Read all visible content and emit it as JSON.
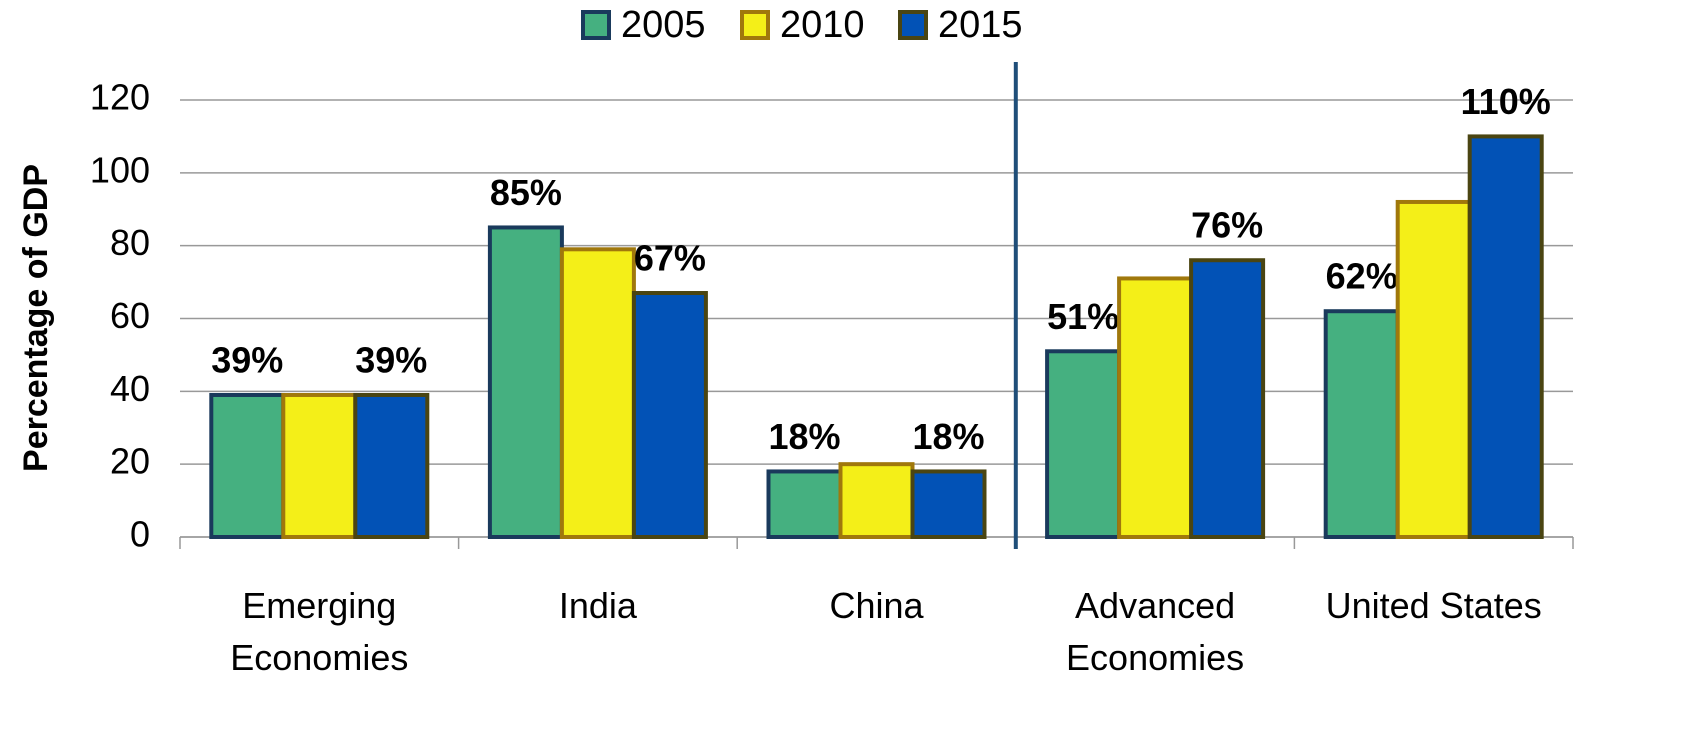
{
  "chart_data": {
    "type": "bar",
    "y_label": "Percentage of GDP",
    "categories": [
      "Emerging\nEconomies",
      "India",
      "China",
      "Advanced\nEconomies",
      "United States"
    ],
    "series": [
      {
        "name": "2005",
        "color": "#45b080",
        "edge": "#1a3a5c",
        "values": [
          39,
          85,
          18,
          51,
          62
        ],
        "value_labels": [
          "39%",
          "85%",
          "18%",
          "51%",
          "62%"
        ]
      },
      {
        "name": "2010",
        "color": "#f4ef18",
        "edge": "#a0780c",
        "values": [
          39,
          79,
          20,
          71,
          92
        ]
      },
      {
        "name": "2015",
        "color": "#0252b6",
        "edge": "#4a4512",
        "values": [
          39,
          67,
          18,
          76,
          110
        ],
        "value_labels": [
          "39%",
          "67%",
          "18%",
          "76%",
          "110%"
        ]
      }
    ],
    "ylim": [
      0,
      120
    ],
    "yticks": [
      0,
      20,
      40,
      60,
      80,
      100,
      120
    ],
    "grid": true,
    "legend": "top"
  }
}
